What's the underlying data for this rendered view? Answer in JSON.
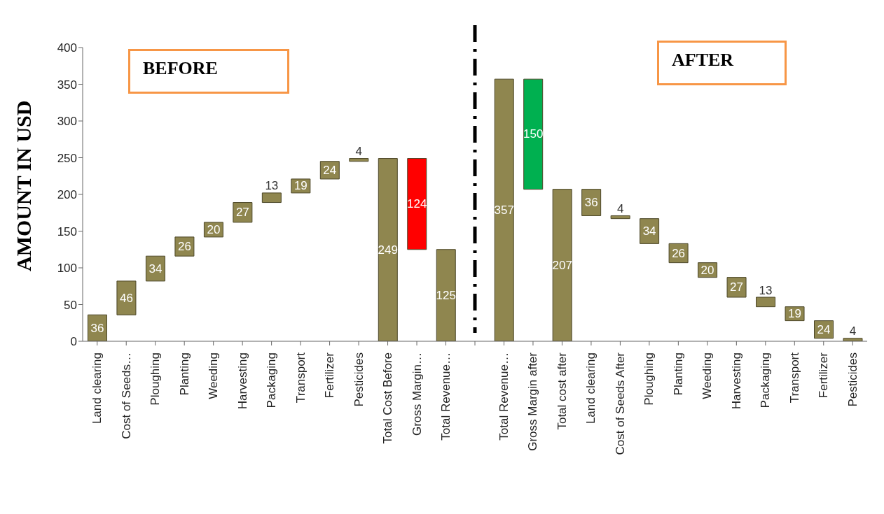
{
  "chart_data": {
    "type": "bar",
    "ylabel": "AMOUNT IN USD",
    "categories": [
      "Land clearing",
      "Cost of Seeds…",
      "Ploughing",
      "Planting",
      "Weeding",
      "Harvesting",
      "Packaging",
      "Transport",
      "Fertilizer",
      "Pesticides",
      "Total Cost Before",
      "Gross Margin…",
      "Total Revenue…",
      null,
      "Total Revenue…",
      "Gross Margin after",
      "Total cost after",
      "Land clearing",
      "Cost of Seeds After",
      "Ploughing",
      "Planting",
      "Weeding",
      "Harvesting",
      "Packaging",
      "Transport",
      "Fertilizer",
      "Pesticides"
    ],
    "values": [
      36,
      46,
      34,
      26,
      20,
      27,
      13,
      19,
      24,
      4,
      249,
      124,
      125,
      null,
      357,
      150,
      207,
      36,
      4,
      34,
      26,
      20,
      27,
      13,
      19,
      24,
      4
    ],
    "base": [
      0,
      36,
      82,
      116,
      142,
      162,
      189,
      202,
      221,
      245,
      0,
      125,
      0,
      null,
      0,
      207,
      0,
      171,
      167,
      133,
      107,
      87,
      60,
      47,
      28,
      4,
      0
    ],
    "colors": [
      "#8f864f",
      "#8f864f",
      "#8f864f",
      "#8f864f",
      "#8f864f",
      "#8f864f",
      "#8f864f",
      "#8f864f",
      "#8f864f",
      "#8f864f",
      "#8f864f",
      "#ff0000",
      "#8f864f",
      null,
      "#8f864f",
      "#00b050",
      "#8f864f",
      "#8f864f",
      "#8f864f",
      "#8f864f",
      "#8f864f",
      "#8f864f",
      "#8f864f",
      "#8f864f",
      "#8f864f",
      "#8f864f",
      "#8f864f"
    ],
    "ylim": [
      0,
      400
    ],
    "yticks": [
      0,
      50,
      100,
      150,
      200,
      250,
      300,
      350,
      400
    ],
    "data_labels": true,
    "annotations": [
      "BEFORE",
      "AFTER"
    ]
  }
}
